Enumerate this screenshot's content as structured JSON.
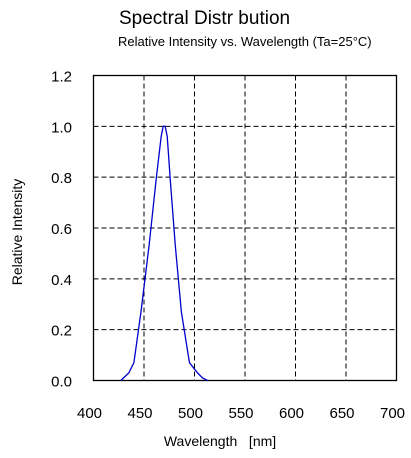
{
  "chart_data": {
    "type": "line",
    "title": "Spectral Distr bution",
    "subtitle": "Relative Intensity vs. Wavelength (Ta=25°C)",
    "xlabel": "Wavelength   [nm]",
    "ylabel": "Relative Intensity",
    "xlim": [
      400,
      700
    ],
    "ylim": [
      0.0,
      1.2
    ],
    "x_ticks": [
      400,
      450,
      500,
      550,
      600,
      650,
      700
    ],
    "x_tick_labels": [
      "400",
      "450",
      "500",
      "550",
      "600",
      "650",
      "700"
    ],
    "y_ticks": [
      0.0,
      0.2,
      0.4,
      0.6,
      0.8,
      1.0,
      1.2
    ],
    "y_tick_labels": [
      "0.0",
      "0.2",
      "0.4",
      "0.6",
      "0.8",
      "1.0",
      "1.2"
    ],
    "grid": true,
    "grid_style": "dashed",
    "colors": {
      "series": "#0000cc",
      "grid": "#000000",
      "frame": "#000000"
    },
    "series": [
      {
        "x": [
          427,
          435,
          440,
          447,
          455,
          462,
          467,
          469,
          471,
          473,
          476,
          481,
          487,
          495,
          503,
          508,
          513
        ],
        "y": [
          0.0,
          0.03,
          0.07,
          0.27,
          0.53,
          0.79,
          0.96,
          1.0,
          1.0,
          0.96,
          0.79,
          0.53,
          0.27,
          0.07,
          0.03,
          0.01,
          0.0
        ]
      }
    ]
  }
}
